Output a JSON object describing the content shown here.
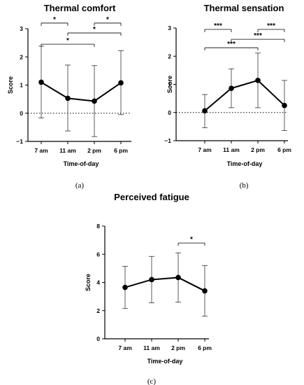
{
  "chart_data": [
    {
      "id": "a",
      "type": "line",
      "title": "Thermal comfort",
      "xlabel": "Time-of-day",
      "ylabel": "Score",
      "panel_label": "(a)",
      "categories": [
        "7 am",
        "11 am",
        "2 pm",
        "6 pm"
      ],
      "values": [
        1.1,
        0.53,
        0.43,
        1.08
      ],
      "error_low": [
        -0.17,
        -0.63,
        -0.83,
        -0.05
      ],
      "error_high": [
        2.38,
        1.71,
        1.69,
        2.22
      ],
      "ylim": [
        -1,
        3
      ],
      "yticks": [
        -1,
        0,
        1,
        2,
        3
      ],
      "reference_line": 0,
      "significance": [
        {
          "from": 0,
          "to": 1,
          "label": "*",
          "y": 3.2
        },
        {
          "from": 2,
          "to": 3,
          "label": "*",
          "y": 3.2
        },
        {
          "from": 1,
          "to": 3,
          "label": "*",
          "y": 2.85
        },
        {
          "from": 0,
          "to": 2,
          "label": "*",
          "y": 2.45
        }
      ]
    },
    {
      "id": "b",
      "type": "line",
      "title": "Thermal sensation",
      "xlabel": "Time-of-day",
      "ylabel": "Score",
      "panel_label": "(b)",
      "categories": [
        "7 am",
        "11 am",
        "2 pm",
        "6 pm"
      ],
      "values": [
        0.06,
        0.86,
        1.14,
        0.25
      ],
      "error_low": [
        -0.54,
        0.17,
        0.17,
        -0.64
      ],
      "error_high": [
        0.64,
        1.55,
        2.11,
        1.14
      ],
      "ylim": [
        -1,
        3
      ],
      "yticks": [
        -1,
        0,
        1,
        2,
        3
      ],
      "reference_line": 0,
      "significance": [
        {
          "from": 0,
          "to": 1,
          "label": "***",
          "y": 2.95
        },
        {
          "from": 2,
          "to": 3,
          "label": "***",
          "y": 2.95
        },
        {
          "from": 1,
          "to": 3,
          "label": "***",
          "y": 2.6
        },
        {
          "from": 0,
          "to": 2,
          "label": "***",
          "y": 2.3
        }
      ]
    },
    {
      "id": "c",
      "type": "line",
      "title": "Perceived fatigue",
      "xlabel": "Time-of-day",
      "ylabel": "Score",
      "panel_label": "(c)",
      "categories": [
        "7 am",
        "11 am",
        "2 pm",
        "6 pm"
      ],
      "values": [
        3.65,
        4.2,
        4.35,
        3.4
      ],
      "error_low": [
        2.15,
        2.55,
        2.6,
        1.6
      ],
      "error_high": [
        5.15,
        5.85,
        6.1,
        5.2
      ],
      "ylim": [
        0,
        8
      ],
      "yticks": [
        0,
        2,
        4,
        6,
        8
      ],
      "reference_line": null,
      "significance": [
        {
          "from": 2,
          "to": 3,
          "label": "*",
          "y": 6.8
        }
      ]
    }
  ]
}
